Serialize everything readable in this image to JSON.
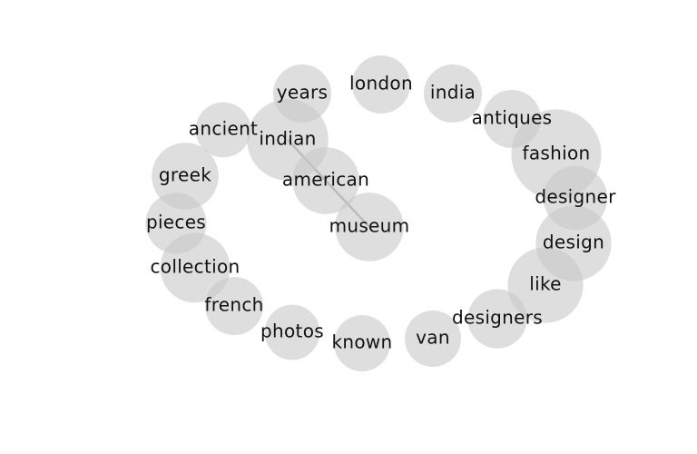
{
  "diagram": {
    "nodes": [
      {
        "id": "years",
        "label": "years",
        "weight": 1.0
      },
      {
        "id": "london",
        "label": "london",
        "weight": 1.0
      },
      {
        "id": "india",
        "label": "india",
        "weight": 1.0
      },
      {
        "id": "antiques",
        "label": "antiques",
        "weight": 1.0
      },
      {
        "id": "ancient",
        "label": "ancient",
        "weight": 0.95
      },
      {
        "id": "indian",
        "label": "indian",
        "weight": 1.4
      },
      {
        "id": "fashion",
        "label": "fashion",
        "weight": 1.55
      },
      {
        "id": "greek",
        "label": "greek",
        "weight": 1.15
      },
      {
        "id": "american",
        "label": "american",
        "weight": 1.15
      },
      {
        "id": "designer",
        "label": "designer",
        "weight": 1.1
      },
      {
        "id": "pieces",
        "label": "pieces",
        "weight": 1.05
      },
      {
        "id": "museum",
        "label": "museum",
        "weight": 1.18
      },
      {
        "id": "design",
        "label": "design",
        "weight": 1.3
      },
      {
        "id": "collection",
        "label": "collection",
        "weight": 1.2
      },
      {
        "id": "like",
        "label": "like",
        "weight": 1.3
      },
      {
        "id": "french",
        "label": "french",
        "weight": 1.0
      },
      {
        "id": "designers",
        "label": "designers",
        "weight": 1.02
      },
      {
        "id": "photos",
        "label": "photos",
        "weight": 0.95
      },
      {
        "id": "known",
        "label": "known",
        "weight": 0.97
      },
      {
        "id": "van",
        "label": "van",
        "weight": 0.97
      }
    ],
    "edges": [
      {
        "source": "indian",
        "target": "american"
      },
      {
        "source": "american",
        "target": "museum"
      }
    ]
  }
}
